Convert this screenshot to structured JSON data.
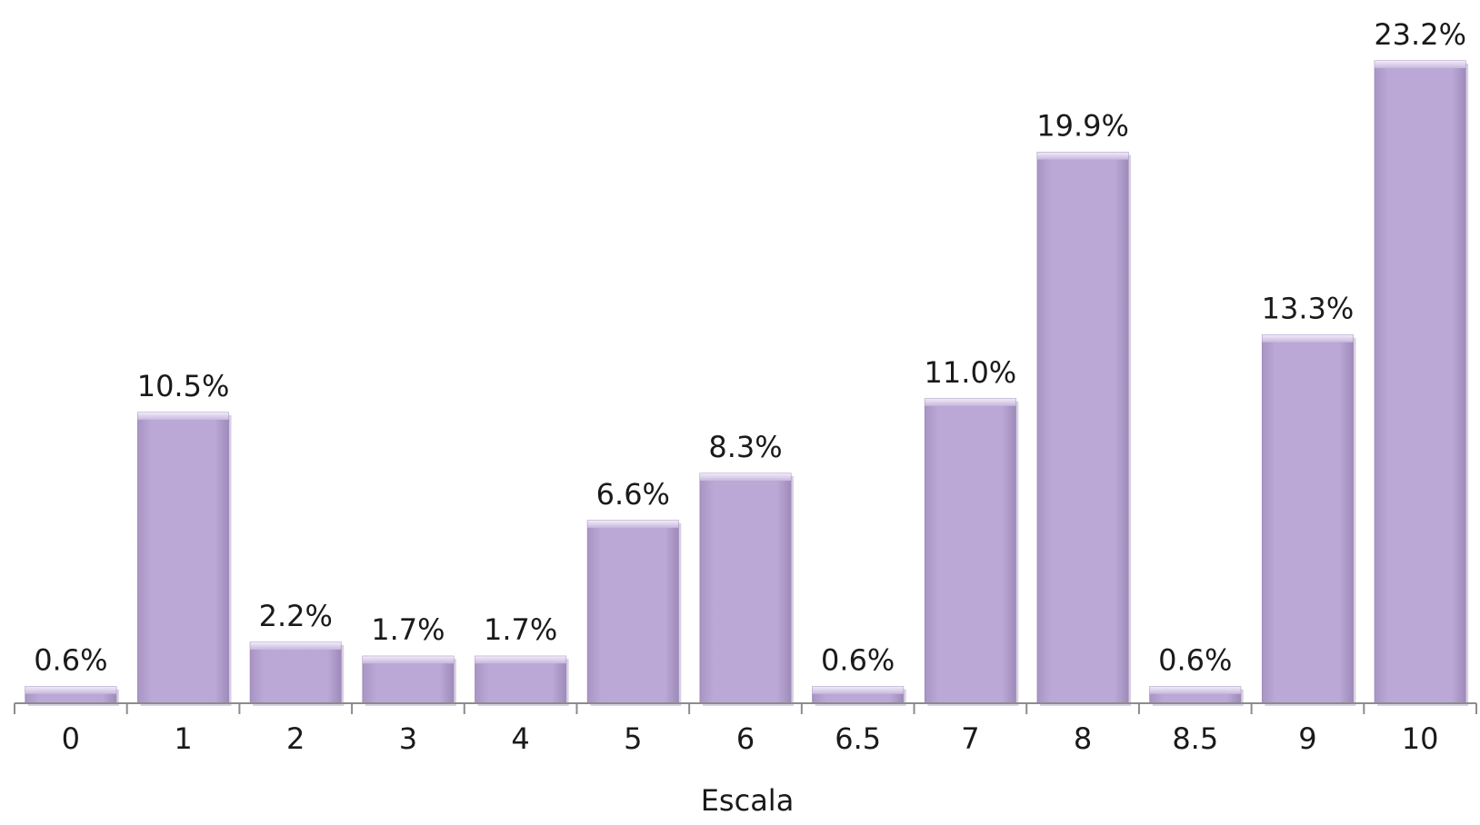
{
  "colors": {
    "bar_fill": "#b9a6d3",
    "bar_top": "#e6dcf2",
    "bar_shadow": "#8f7aa8",
    "axis": "#8c8c8c",
    "text": "#1a1a1a"
  },
  "chart_data": {
    "type": "bar",
    "title": "",
    "xlabel": "Escala",
    "ylabel": "",
    "categories": [
      "0",
      "1",
      "2",
      "3",
      "4",
      "5",
      "6",
      "6.5",
      "7",
      "8",
      "8.5",
      "9",
      "10"
    ],
    "values": [
      0.6,
      10.5,
      2.2,
      1.7,
      1.7,
      6.6,
      8.3,
      0.6,
      11.0,
      19.9,
      0.6,
      13.3,
      23.2
    ],
    "data_labels": [
      "0.6%",
      "10.5%",
      "2.2%",
      "1.7%",
      "1.7%",
      "6.6%",
      "8.3%",
      "0.6%",
      "11.0%",
      "19.9%",
      "0.6%",
      "13.3%",
      "23.2%"
    ],
    "ylim": [
      0,
      23.2
    ],
    "grid": false,
    "legend": "none"
  }
}
